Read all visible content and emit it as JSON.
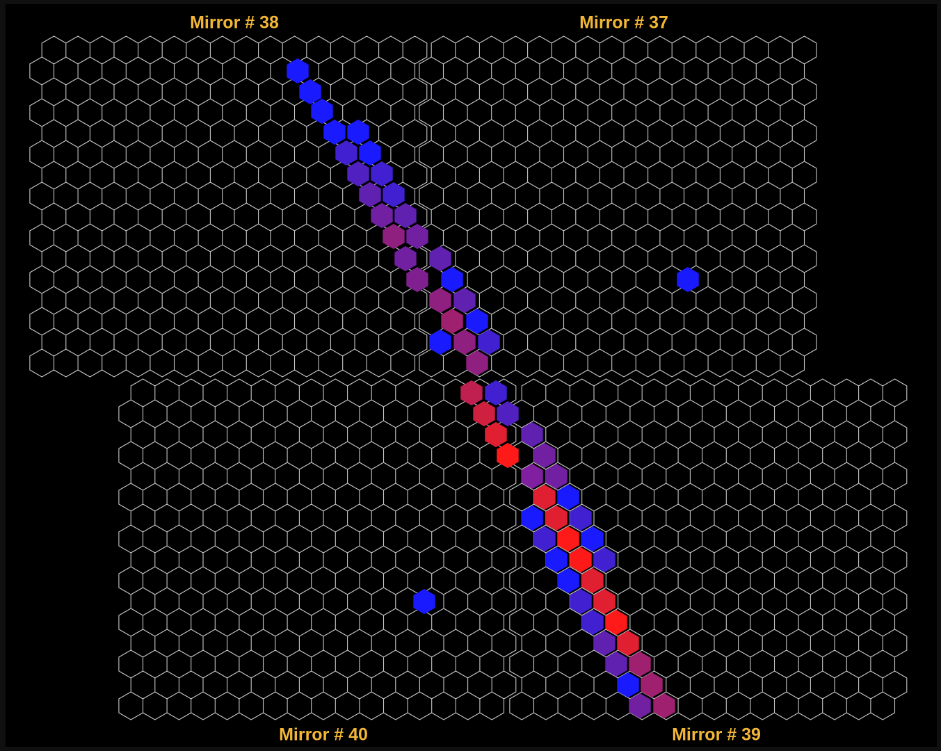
{
  "mirrors": [
    {
      "title": "Mirror # 38"
    },
    {
      "title": "Mirror # 37"
    },
    {
      "title": "Mirror # 40"
    },
    {
      "title": "Mirror # 39"
    }
  ]
}
